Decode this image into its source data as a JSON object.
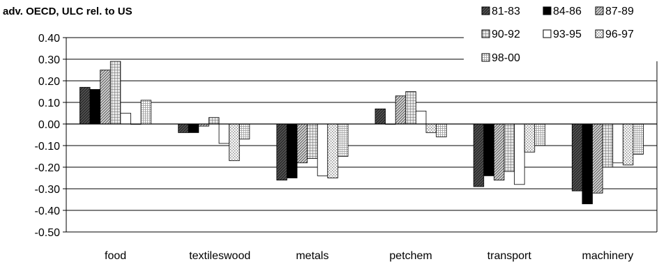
{
  "chart_data": {
    "type": "bar",
    "title": "adv. OECD, ULC rel. to US",
    "xlabel": "",
    "ylabel": "",
    "ylim": [
      -0.5,
      0.4
    ],
    "ytick_step": 0.1,
    "ytick_labels": [
      "0.40",
      "0.30",
      "0.20",
      "0.10",
      "0.00",
      "-0.10",
      "-0.20",
      "-0.30",
      "-0.40",
      "-0.50"
    ],
    "categories": [
      "food",
      "textileswood",
      "metals",
      "petchem",
      "transport",
      "machinery"
    ],
    "grid": true,
    "legend_position": "top-right",
    "series": [
      {
        "name": "81-83",
        "pattern": "dark-hatch",
        "values": [
          0.17,
          -0.04,
          -0.26,
          0.07,
          -0.29,
          -0.31
        ]
      },
      {
        "name": "84-86",
        "pattern": "solid-black",
        "values": [
          0.16,
          -0.04,
          -0.25,
          0.0,
          -0.24,
          -0.37
        ]
      },
      {
        "name": "87-89",
        "pattern": "diagonal",
        "values": [
          0.25,
          -0.01,
          -0.18,
          0.13,
          -0.26,
          -0.32
        ]
      },
      {
        "name": "90-92",
        "pattern": "grid",
        "values": [
          0.29,
          0.03,
          -0.16,
          0.15,
          -0.22,
          -0.2
        ]
      },
      {
        "name": "93-95",
        "pattern": "white",
        "values": [
          0.05,
          -0.09,
          -0.24,
          0.06,
          -0.28,
          -0.18
        ]
      },
      {
        "name": "96-97",
        "pattern": "dotted",
        "values": [
          0.0,
          -0.17,
          -0.25,
          -0.04,
          -0.13,
          -0.19
        ]
      },
      {
        "name": "98-00",
        "pattern": "checker",
        "values": [
          0.11,
          -0.07,
          -0.15,
          -0.06,
          -0.1,
          -0.14
        ]
      }
    ]
  }
}
